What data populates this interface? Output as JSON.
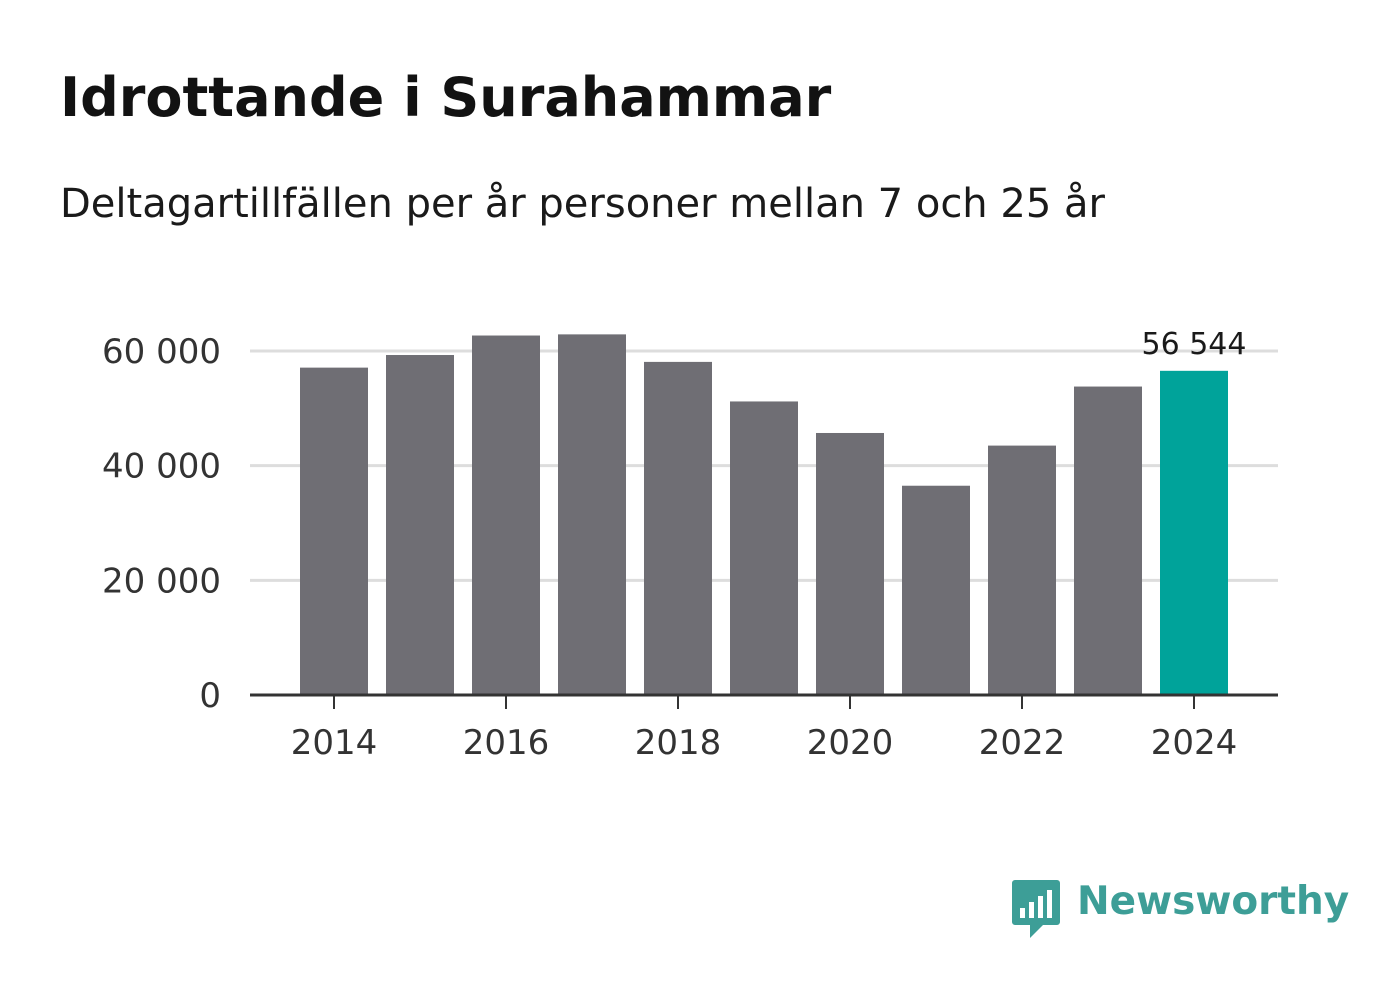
{
  "header": {
    "title": "Idrottande i Surahammar",
    "subtitle": "Deltagartillfällen per år personer mellan 7 och 25 år"
  },
  "brand": {
    "name": "Newsworthy",
    "icon": "newsworthy-logo-icon",
    "color": "#3d9e97"
  },
  "colors": {
    "bar": "#6f6e74",
    "highlight": "#00a39a",
    "grid": "#dddddd",
    "axis": "#333333"
  },
  "chart_data": {
    "type": "bar",
    "title": "Idrottande i Surahammar",
    "subtitle": "Deltagartillfällen per år personer mellan 7 och 25 år",
    "xlabel": "",
    "ylabel": "",
    "categories": [
      "2014",
      "2015",
      "2016",
      "2017",
      "2018",
      "2019",
      "2020",
      "2021",
      "2022",
      "2023",
      "2024"
    ],
    "values": [
      57100,
      59300,
      62700,
      62900,
      58100,
      51200,
      45700,
      36500,
      43500,
      53800,
      56544
    ],
    "x_tick_labels": [
      "2014",
      "2016",
      "2018",
      "2020",
      "2022",
      "2024"
    ],
    "y_ticks": [
      0,
      20000,
      40000,
      60000
    ],
    "y_tick_labels": [
      "0",
      "20 000",
      "40 000",
      "60 000"
    ],
    "ylim": [
      0,
      60000
    ],
    "grid": true,
    "highlight_index": 10,
    "annotation": {
      "category": "2024",
      "text": "56 544"
    }
  }
}
